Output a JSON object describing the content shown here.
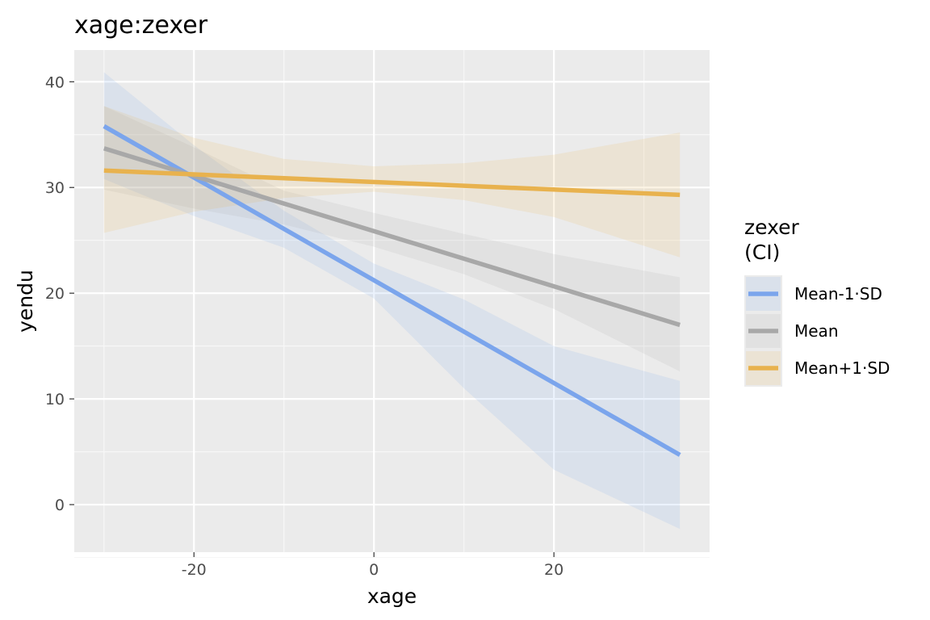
{
  "chart_data": {
    "type": "line",
    "title": "xage:zexer",
    "xlabel": "xage",
    "ylabel": "yendu",
    "xlim": [
      -33.3,
      37.3
    ],
    "ylim": [
      -4.5,
      43.0
    ],
    "x_ticks": [
      -20,
      0,
      20
    ],
    "x_tick_labels": [
      "-20",
      "0",
      "20"
    ],
    "y_ticks": [
      0,
      10,
      20,
      30,
      40
    ],
    "y_tick_labels": [
      "0",
      "10",
      "20",
      "30",
      "40"
    ],
    "x_minor_ticks": [
      -30,
      -10,
      10,
      30
    ],
    "y_minor_ticks": [
      -5,
      5,
      15,
      25,
      35
    ],
    "grid": true,
    "legend": {
      "title_line1": "zexer",
      "title_line2": "(CI)",
      "position": "right"
    },
    "series": [
      {
        "name": "Mean-1·SD",
        "color": "#7ba5ec",
        "x": [
          -30,
          34
        ],
        "y": [
          35.8,
          4.7
        ],
        "ci_x": [
          -30,
          -20,
          -10,
          0,
          10,
          20,
          34
        ],
        "ci_lower": [
          30.8,
          27.3,
          24.3,
          19.5,
          11.0,
          3.3,
          -2.3
        ],
        "ci_upper": [
          40.9,
          34.0,
          27.8,
          22.8,
          19.4,
          15.0,
          11.7
        ]
      },
      {
        "name": "Mean",
        "color": "#a8a8a8",
        "x": [
          -30,
          34
        ],
        "y": [
          33.7,
          17.0
        ],
        "ci_x": [
          -30,
          -20,
          -10,
          0,
          10,
          20,
          34
        ],
        "ci_lower": [
          29.8,
          28.0,
          26.5,
          24.4,
          21.8,
          18.5,
          12.6
        ],
        "ci_upper": [
          37.7,
          33.8,
          29.7,
          27.6,
          25.6,
          23.7,
          21.5
        ]
      },
      {
        "name": "Mean+1·SD",
        "color": "#e8b24e",
        "x": [
          -30,
          34
        ],
        "y": [
          31.6,
          29.3
        ],
        "ci_x": [
          -30,
          -20,
          -10,
          0,
          10,
          20,
          34
        ],
        "ci_lower": [
          25.7,
          27.7,
          29.0,
          29.6,
          28.8,
          27.2,
          23.4
        ],
        "ci_upper": [
          37.7,
          34.7,
          32.7,
          32.0,
          32.3,
          33.1,
          35.2
        ]
      }
    ]
  },
  "colors": {
    "panel_background": "#ebebeb",
    "grid_major": "#ffffff",
    "grid_minor": "#f7f7f7",
    "tick_color": "#333333",
    "legend_key_background": "#ebebeb"
  }
}
